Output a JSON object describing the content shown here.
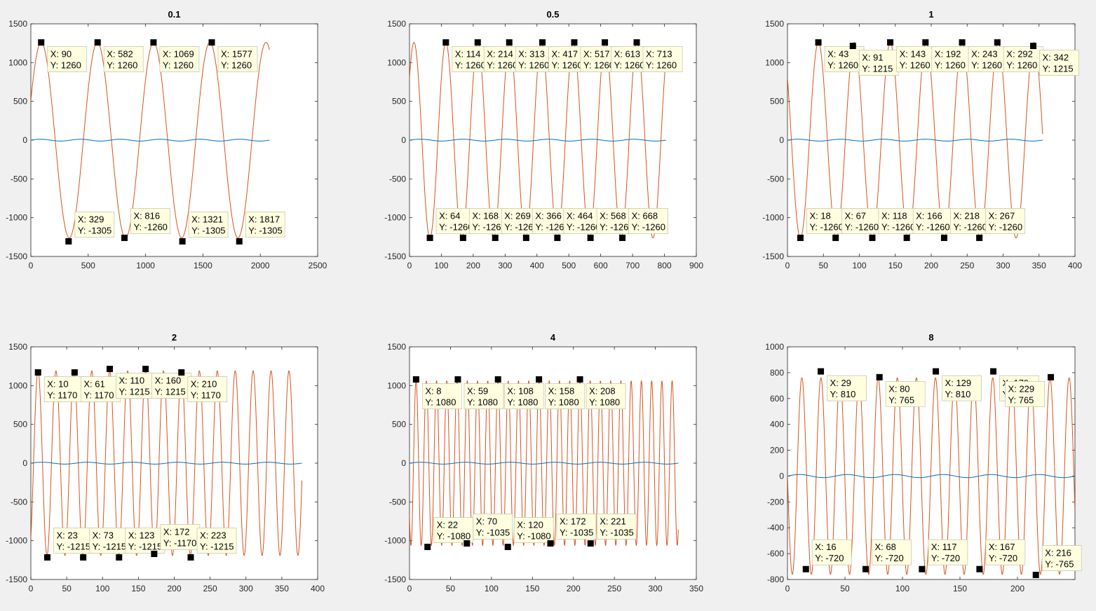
{
  "chart_data": [
    {
      "type": "line",
      "title": "0.1",
      "xlim": [
        0,
        2500
      ],
      "ylim": [
        -1500,
        1500
      ],
      "xticks": [
        "0",
        "500",
        "1000",
        "1500",
        "2000",
        "2500"
      ],
      "yticks": [
        "1500",
        "1000",
        "500",
        "0",
        "-500",
        "-1000",
        "-1500"
      ],
      "signal": {
        "period": 490,
        "amplitude": 1260,
        "x_end": 2080,
        "x_start": 0,
        "phase_peak": 90
      },
      "reference": {
        "amplitude": 12,
        "x_end": 2080
      },
      "colors": {
        "signal": "#d95319",
        "reference": "#0072bd"
      },
      "datatips": [
        {
          "x": 90,
          "y": 1260,
          "label_x": "X: 90",
          "label_y": "Y: 1260"
        },
        {
          "x": 582,
          "y": 1260,
          "label_x": "X: 582",
          "label_y": "Y: 1260"
        },
        {
          "x": 1069,
          "y": 1260,
          "label_x": "X: 1069",
          "label_y": "Y: 1260"
        },
        {
          "x": 1577,
          "y": 1260,
          "label_x": "X: 1577",
          "label_y": "Y: 1260"
        },
        {
          "x": 329,
          "y": -1305,
          "label_x": "X: 329",
          "label_y": "Y: -1305"
        },
        {
          "x": 816,
          "y": -1260,
          "label_x": "X: 816",
          "label_y": "Y: -1260"
        },
        {
          "x": 1321,
          "y": -1305,
          "label_x": "X: 1321",
          "label_y": "Y: -1305"
        },
        {
          "x": 1817,
          "y": -1305,
          "label_x": "X: 1817",
          "label_y": "Y: -1305"
        }
      ]
    },
    {
      "type": "line",
      "title": "0.5",
      "xlim": [
        0,
        900
      ],
      "ylim": [
        -1500,
        1500
      ],
      "xticks": [
        "0",
        "100",
        "200",
        "300",
        "400",
        "500",
        "600",
        "700",
        "800",
        "900"
      ],
      "yticks": [
        "1500",
        "1000",
        "500",
        "0",
        "-500",
        "-1000",
        "-1500"
      ],
      "signal": {
        "period": 100,
        "amplitude": 1260,
        "x_end": 805,
        "x_start": 0,
        "phase_peak": 114
      },
      "reference": {
        "amplitude": 12,
        "x_end": 805
      },
      "colors": {
        "signal": "#d95319",
        "reference": "#0072bd"
      },
      "datatips": [
        {
          "x": 114,
          "y": 1260,
          "label_x": "X: 114",
          "label_y": "Y: 1260"
        },
        {
          "x": 214,
          "y": 1260,
          "label_x": "X: 214",
          "label_y": "Y: 1260"
        },
        {
          "x": 313,
          "y": 1260,
          "label_x": "X: 313",
          "label_y": "Y: 1260"
        },
        {
          "x": 417,
          "y": 1260,
          "label_x": "X: 417",
          "label_y": "Y: 1260"
        },
        {
          "x": 517,
          "y": 1260,
          "label_x": "X: 517",
          "label_y": "Y: 1260"
        },
        {
          "x": 613,
          "y": 1260,
          "label_x": "X: 613",
          "label_y": "Y: 1260"
        },
        {
          "x": 713,
          "y": 1260,
          "label_x": "X: 713",
          "label_y": "Y: 1260"
        },
        {
          "x": 64,
          "y": -1260,
          "label_x": "X: 64",
          "label_y": "Y: -1260"
        },
        {
          "x": 168,
          "y": -1260,
          "label_x": "X: 168",
          "label_y": "Y: -1260"
        },
        {
          "x": 269,
          "y": -1260,
          "label_x": "X: 269",
          "label_y": "Y: -1260"
        },
        {
          "x": 366,
          "y": -1260,
          "label_x": "X: 366",
          "label_y": "Y: -1260"
        },
        {
          "x": 464,
          "y": -1260,
          "label_x": "X: 464",
          "label_y": "Y: -1260"
        },
        {
          "x": 568,
          "y": -1260,
          "label_x": "X: 568",
          "label_y": "Y: -1260"
        },
        {
          "x": 668,
          "y": -1260,
          "label_x": "X: 668",
          "label_y": "Y: -1260"
        }
      ]
    },
    {
      "type": "line",
      "title": "1",
      "xlim": [
        0,
        400
      ],
      "ylim": [
        -1500,
        1500
      ],
      "xticks": [
        "0",
        "50",
        "100",
        "150",
        "200",
        "250",
        "300",
        "350",
        "400"
      ],
      "yticks": [
        "1500",
        "1000",
        "500",
        "0",
        "-500",
        "-1000",
        "-1500"
      ],
      "signal": {
        "period": 50,
        "amplitude": 1260,
        "x_end": 355,
        "x_start": 0,
        "phase_peak": 43
      },
      "reference": {
        "amplitude": 12,
        "x_end": 355
      },
      "colors": {
        "signal": "#d95319",
        "reference": "#0072bd"
      },
      "datatips": [
        {
          "x": 43,
          "y": 1260,
          "label_x": "X: 43",
          "label_y": "Y: 1260"
        },
        {
          "x": 91,
          "y": 1215,
          "label_x": "X: 91",
          "label_y": "Y: 1215"
        },
        {
          "x": 143,
          "y": 1260,
          "label_x": "X: 143",
          "label_y": "Y: 1260"
        },
        {
          "x": 192,
          "y": 1260,
          "label_x": "X: 192",
          "label_y": "Y: 1260"
        },
        {
          "x": 243,
          "y": 1260,
          "label_x": "X: 243",
          "label_y": "Y: 1260"
        },
        {
          "x": 292,
          "y": 1260,
          "label_x": "X: 292",
          "label_y": "Y: 1260"
        },
        {
          "x": 342,
          "y": 1215,
          "label_x": "X: 342",
          "label_y": "Y: 1215"
        },
        {
          "x": 18,
          "y": -1260,
          "label_x": "X: 18",
          "label_y": "Y: -1260"
        },
        {
          "x": 67,
          "y": -1260,
          "label_x": "X: 67",
          "label_y": "Y: -1260"
        },
        {
          "x": 118,
          "y": -1260,
          "label_x": "X: 118",
          "label_y": "Y: -1260"
        },
        {
          "x": 166,
          "y": -1260,
          "label_x": "X: 166",
          "label_y": "Y: -1260"
        },
        {
          "x": 218,
          "y": -1260,
          "label_x": "X: 218",
          "label_y": "Y: -1260"
        },
        {
          "x": 267,
          "y": -1260,
          "label_x": "X: 267",
          "label_y": "Y: -1260"
        }
      ]
    },
    {
      "type": "line",
      "title": "2",
      "xlim": [
        0,
        400
      ],
      "ylim": [
        -1500,
        1500
      ],
      "xticks": [
        "0",
        "50",
        "100",
        "150",
        "200",
        "250",
        "300",
        "350",
        "400"
      ],
      "yticks": [
        "1500",
        "1000",
        "500",
        "0",
        "-500",
        "-1000",
        "-1500"
      ],
      "signal": {
        "period": 25,
        "amplitude": 1190,
        "x_end": 378,
        "x_start": 0,
        "phase_peak": 10
      },
      "reference": {
        "amplitude": 12,
        "x_end": 378
      },
      "colors": {
        "signal": "#d95319",
        "reference": "#0072bd"
      },
      "datatips": [
        {
          "x": 10,
          "y": 1170,
          "label_x": "X: 10",
          "label_y": "Y: 1170"
        },
        {
          "x": 61,
          "y": 1170,
          "label_x": "X: 61",
          "label_y": "Y: 1170"
        },
        {
          "x": 110,
          "y": 1215,
          "label_x": "X: 110",
          "label_y": "Y: 1215"
        },
        {
          "x": 160,
          "y": 1215,
          "label_x": "X: 160",
          "label_y": "Y: 1215"
        },
        {
          "x": 210,
          "y": 1170,
          "label_x": "X: 210",
          "label_y": "Y: 1170"
        },
        {
          "x": 23,
          "y": -1215,
          "label_x": "X: 23",
          "label_y": "Y: -1215"
        },
        {
          "x": 73,
          "y": -1215,
          "label_x": "X: 73",
          "label_y": "Y: -1215"
        },
        {
          "x": 123,
          "y": -1215,
          "label_x": "X: 123",
          "label_y": "Y: -1215"
        },
        {
          "x": 172,
          "y": -1170,
          "label_x": "X: 172",
          "label_y": "Y: -1170"
        },
        {
          "x": 223,
          "y": -1215,
          "label_x": "X: 223",
          "label_y": "Y: -1215"
        }
      ]
    },
    {
      "type": "line",
      "title": "4",
      "xlim": [
        0,
        350
      ],
      "ylim": [
        -1500,
        1500
      ],
      "xticks": [
        "0",
        "50",
        "100",
        "150",
        "200",
        "250",
        "300",
        "350"
      ],
      "yticks": [
        "1500",
        "1000",
        "500",
        "0",
        "-500",
        "-1000",
        "-1500"
      ],
      "signal": {
        "period": 12.5,
        "amplitude": 1060,
        "x_end": 328,
        "x_start": 0,
        "phase_peak": 8
      },
      "reference": {
        "amplitude": 12,
        "x_end": 328
      },
      "colors": {
        "signal": "#d95319",
        "reference": "#0072bd"
      },
      "datatips": [
        {
          "x": 8,
          "y": 1080,
          "label_x": "X: 8",
          "label_y": "Y: 1080"
        },
        {
          "x": 59,
          "y": 1080,
          "label_x": "X: 59",
          "label_y": "Y: 1080"
        },
        {
          "x": 108,
          "y": 1080,
          "label_x": "X: 108",
          "label_y": "Y: 1080"
        },
        {
          "x": 158,
          "y": 1080,
          "label_x": "X: 158",
          "label_y": "Y: 1080"
        },
        {
          "x": 208,
          "y": 1080,
          "label_x": "X: 208",
          "label_y": "Y: 1080"
        },
        {
          "x": 22,
          "y": -1080,
          "label_x": "X: 22",
          "label_y": "Y: -1080"
        },
        {
          "x": 70,
          "y": -1035,
          "label_x": "X: 70",
          "label_y": "Y: -1035"
        },
        {
          "x": 120,
          "y": -1080,
          "label_x": "X: 120",
          "label_y": "Y: -1080"
        },
        {
          "x": 172,
          "y": -1035,
          "label_x": "X: 172",
          "label_y": "Y: -1035"
        },
        {
          "x": 221,
          "y": -1035,
          "label_x": "X: 221",
          "label_y": "Y: -1035"
        }
      ]
    },
    {
      "type": "line",
      "title": "8",
      "xlim": [
        0,
        250
      ],
      "ylim": [
        -800,
        1000
      ],
      "xticks": [
        "0",
        "50",
        "100",
        "150",
        "200"
      ],
      "yticks": [
        "1000",
        "800",
        "600",
        "400",
        "200",
        "0",
        "-200",
        "-400",
        "-600",
        "-800"
      ],
      "signal": {
        "period": 16.6,
        "amplitude": 760,
        "x_end": 250,
        "x_start": 0,
        "phase_peak": 12.5
      },
      "reference": {
        "amplitude": 12,
        "x_end": 250
      },
      "colors": {
        "signal": "#d95319",
        "reference": "#0072bd"
      },
      "datatips": [
        {
          "x": 29,
          "y": 810,
          "label_x": "X: 29",
          "label_y": "Y: 810"
        },
        {
          "x": 80,
          "y": 765,
          "label_x": "X: 80",
          "label_y": "Y: 765"
        },
        {
          "x": 129,
          "y": 810,
          "label_x": "X: 129",
          "label_y": "Y: 810"
        },
        {
          "x": 179,
          "y": 810,
          "label_x": "X: 179",
          "label_y": "Y: 810"
        },
        {
          "x": 229,
          "y": 765,
          "label_x": "X: 229",
          "label_y": "Y: 765"
        },
        {
          "x": 16,
          "y": -720,
          "label_x": "X: 16",
          "label_y": "Y: -720"
        },
        {
          "x": 68,
          "y": -720,
          "label_x": "X: 68",
          "label_y": "Y: -720"
        },
        {
          "x": 117,
          "y": -720,
          "label_x": "X: 117",
          "label_y": "Y: -720"
        },
        {
          "x": 167,
          "y": -720,
          "label_x": "X: 167",
          "label_y": "Y: -720"
        },
        {
          "x": 216,
          "y": -765,
          "label_x": "X: 216",
          "label_y": "Y: -765"
        }
      ]
    }
  ]
}
